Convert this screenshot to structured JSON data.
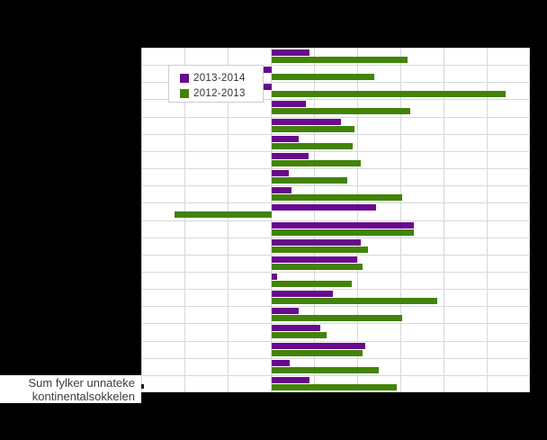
{
  "background_color": "#000000",
  "plot": {
    "background": "#ffffff",
    "gridline_color": "#d8d8d8"
  },
  "legend": {
    "items": [
      {
        "label": "2013-2014",
        "color": "#680a8c"
      },
      {
        "label": "2012-2013",
        "color": "#428309"
      }
    ]
  },
  "label_box": {
    "line1": "Sum fylker unnateke",
    "line2": "kontinentalsokkelen"
  },
  "chart_data": {
    "type": "bar",
    "orientation": "horizontal",
    "title": "",
    "xlabel": "",
    "ylabel": "",
    "categories": [
      "",
      "",
      "",
      "",
      "",
      "",
      "",
      "",
      "",
      "",
      "",
      "",
      "",
      "",
      "",
      "",
      "",
      "",
      "",
      "Sum fylker unnateke kontinentalsokkelen"
    ],
    "series": [
      {
        "name": "2013-2014",
        "color": "#680a8c",
        "values": [
          0.88,
          -0.19,
          -0.19,
          0.79,
          1.6,
          0.63,
          0.85,
          0.4,
          0.46,
          2.41,
          3.29,
          2.06,
          1.98,
          0.13,
          1.42,
          0.63,
          1.13,
          2.17,
          0.42,
          0.88
        ]
      },
      {
        "name": "2012-2013",
        "color": "#428309",
        "values": [
          3.14,
          2.37,
          5.41,
          3.21,
          1.92,
          1.88,
          2.06,
          1.75,
          3.02,
          -2.26,
          3.29,
          2.23,
          2.1,
          1.85,
          3.83,
          3.02,
          1.27,
          2.1,
          2.47,
          2.9
        ]
      }
    ],
    "xlim": [
      -3,
      6
    ],
    "grid": true,
    "x_tick_labels_visible": false,
    "legend_position": "top-left-inside"
  }
}
